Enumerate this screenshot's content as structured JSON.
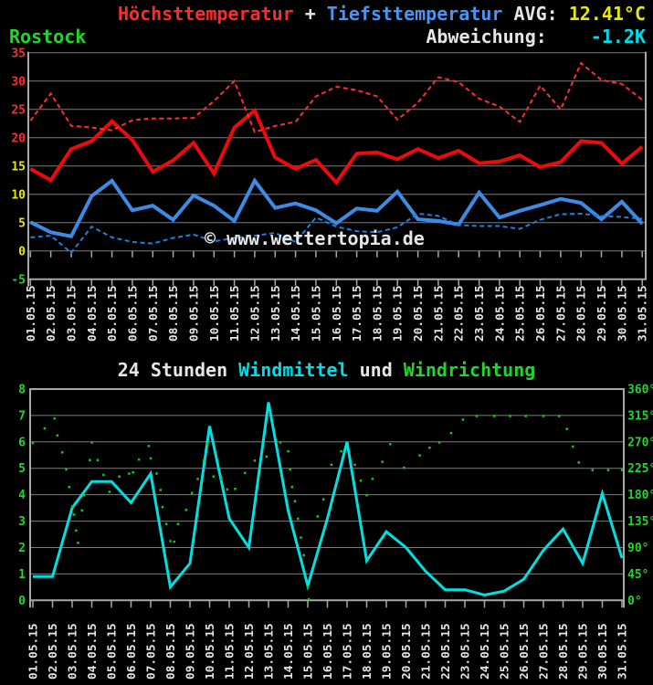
{
  "header": {
    "series1_label": "Höchsttemperatur",
    "separator": " + ",
    "series2_label": "Tiefsttemperatur",
    "avg_label": " AVG: ",
    "avg_value": "12.41°C",
    "station": "Rostock",
    "deviation_label": "Abweichung:",
    "deviation_value": "-1.2K"
  },
  "watermark": "© www.wettertopia.de",
  "wind_title": {
    "prefix": "24 Stunden ",
    "windmittel": "Windmittel",
    "und": " und ",
    "windrichtung": "Windrichtung"
  },
  "colors": {
    "background": "#000000",
    "text_white": "#e6e6e6",
    "red": "#ff2a2a",
    "blue": "#4596f5",
    "yellow": "#e9e900",
    "cyan": "#00dce8",
    "green": "#22d52a",
    "grid": "#7d7d7d",
    "axis": "#a8a8a8",
    "tmax_solid": "#ee0a0a",
    "tmax_dashed": "#ff2d2d",
    "tmin_solid": "#3c8ce6",
    "tmin_dashed": "#1f7fe0",
    "wind_line": "#00e0e0",
    "wind_dots": "#16c816"
  },
  "chart_data": [
    {
      "type": "line",
      "title": "Höchsttemperatur + Tiefsttemperatur",
      "station": "Rostock",
      "avg": "12.41°C",
      "abweichung": "-1.2K",
      "ylim": [
        -5,
        35
      ],
      "ytick_step": 5,
      "grid": true,
      "yticks": [
        {
          "value": 35,
          "color": "#ff2a2a"
        },
        {
          "value": 30,
          "color": "#ff2a2a"
        },
        {
          "value": 25,
          "color": "#ff2a2a"
        },
        {
          "value": 20,
          "color": "#ff2a2a"
        },
        {
          "value": 15,
          "color": "#e9e900"
        },
        {
          "value": 10,
          "color": "#e9e900"
        },
        {
          "value": 5,
          "color": "#e9e900"
        },
        {
          "value": 0,
          "color": "#e9e900"
        },
        {
          "value": -5,
          "color": "#22d52a"
        }
      ],
      "x_labels": [
        "01.05.15",
        "02.05.15",
        "03.05.15",
        "04.05.15",
        "05.05.15",
        "06.05.15",
        "07.05.15",
        "08.05.15",
        "09.05.15",
        "10.05.15",
        "11.05.15",
        "12.05.15",
        "13.05.15",
        "14.05.15",
        "15.05.15",
        "16.05.15",
        "17.05.15",
        "18.05.15",
        "19.05.15",
        "20.05.15",
        "21.05.15",
        "22.05.15",
        "23.05.15",
        "24.05.15",
        "25.05.15",
        "26.05.15",
        "27.05.15",
        "28.05.15",
        "29.05.15",
        "30.05.15",
        "31.05.15"
      ],
      "series": [
        {
          "id": "tmax",
          "name": "Höchsttemperatur",
          "line": "solid",
          "width": 4,
          "color": "#ee0a0a",
          "values": [
            14.5,
            12.5,
            18.0,
            19.4,
            22.9,
            19.6,
            14.0,
            16.0,
            19.1,
            13.7,
            21.8,
            24.8,
            16.5,
            14.5,
            16.1,
            12.1,
            17.2,
            17.4,
            16.2,
            18.0,
            16.4,
            17.7,
            15.5,
            15.8,
            16.9,
            14.8,
            15.7,
            19.4,
            19.1,
            15.4,
            18.4
          ]
        },
        {
          "id": "tmax-dashed",
          "name": "Höchsttemperatur gestrichelt",
          "line": "dashed",
          "width": 2,
          "color": "#ff2d2d",
          "values": [
            23.0,
            27.8,
            22.1,
            21.8,
            21.3,
            23.1,
            23.4,
            23.4,
            23.5,
            26.5,
            30.0,
            21.0,
            22.1,
            22.8,
            27.3,
            29.0,
            28.4,
            27.3,
            23.2,
            26.2,
            30.7,
            29.8,
            26.9,
            25.5,
            22.8,
            29.2,
            25.0,
            33.2,
            30.2,
            29.5,
            26.7
          ]
        },
        {
          "id": "tmin",
          "name": "Tiefsttemperatur",
          "line": "solid",
          "width": 4,
          "color": "#3c8ce6",
          "values": [
            5.1,
            3.3,
            2.6,
            9.7,
            12.4,
            7.2,
            8.0,
            5.5,
            9.8,
            8.0,
            5.3,
            12.4,
            7.6,
            8.4,
            7.2,
            4.9,
            7.5,
            7.1,
            10.5,
            5.6,
            5.3,
            4.7,
            10.3,
            5.9,
            7.1,
            8.1,
            9.2,
            8.5,
            5.6,
            8.7,
            4.8
          ]
        },
        {
          "id": "tmin-dashed",
          "name": "Tiefsttemperatur gestrichelt",
          "line": "dashed",
          "width": 2,
          "color": "#1f7fe0",
          "values": [
            2.4,
            2.7,
            -0.3,
            4.3,
            2.4,
            1.6,
            1.3,
            2.3,
            2.9,
            1.7,
            2.3,
            2.7,
            3.2,
            1.6,
            5.9,
            4.3,
            3.5,
            3.3,
            4.2,
            6.6,
            6.2,
            4.6,
            4.4,
            4.4,
            3.9,
            5.5,
            6.5,
            6.6,
            6.2,
            6.0,
            5.7
          ]
        }
      ]
    },
    {
      "type": "line+scatter",
      "title": "24 Stunden Windmittel und Windrichtung",
      "grid": true,
      "left_ylim": [
        0,
        8
      ],
      "left_yticks": [
        8,
        7,
        6,
        5,
        4,
        3,
        2,
        1,
        0
      ],
      "right_ylim_deg": [
        0,
        360
      ],
      "right_yticks_deg": [
        360,
        315,
        270,
        225,
        180,
        135,
        90,
        45,
        0
      ],
      "right_tick_suffix": "°",
      "x_labels": [
        "01.05.15",
        "02.05.15",
        "03.05.15",
        "04.05.15",
        "05.05.15",
        "06.05.15",
        "07.05.15",
        "08.05.15",
        "09.05.15",
        "10.05.15",
        "11.05.15",
        "12.05.15",
        "13.05.15",
        "14.05.15",
        "15.05.15",
        "16.05.15",
        "17.05.15",
        "18.05.15",
        "19.05.15",
        "20.05.15",
        "21.05.15",
        "22.05.15",
        "23.05.15",
        "24.05.15",
        "25.05.15",
        "26.05.15",
        "27.05.15",
        "28.05.15",
        "29.05.15",
        "30.05.15",
        "31.05.15"
      ],
      "series": [
        {
          "id": "windmittel",
          "name": "Windmittel",
          "line": "solid",
          "width": 3,
          "color": "#00e0e0",
          "values": [
            0.9,
            0.9,
            3.5,
            4.5,
            4.5,
            3.7,
            4.8,
            0.5,
            1.4,
            6.6,
            3.1,
            2.0,
            7.5,
            3.4,
            0.55,
            3.1,
            6.0,
            1.5,
            2.6,
            2.0,
            1.1,
            0.4,
            0.4,
            0.2,
            0.35,
            0.8,
            1.9,
            2.7,
            1.4,
            4.05,
            1.6
          ]
        }
      ],
      "scatter": {
        "id": "windrichtung",
        "name": "Windrichtung",
        "color": "#16c816",
        "points_day_deg": [
          [
            1.0,
            268
          ],
          [
            1.6,
            293
          ],
          [
            2.1,
            310
          ],
          [
            2.25,
            281
          ],
          [
            2.5,
            252
          ],
          [
            2.7,
            223
          ],
          [
            2.85,
            193
          ],
          [
            3.0,
            160
          ],
          [
            3.1,
            146
          ],
          [
            3.2,
            119
          ],
          [
            3.3,
            98
          ],
          [
            3.5,
            153
          ],
          [
            3.6,
            179
          ],
          [
            3.9,
            239
          ],
          [
            4.0,
            269
          ],
          [
            4.3,
            239
          ],
          [
            4.6,
            214
          ],
          [
            4.9,
            185
          ],
          [
            5.4,
            211
          ],
          [
            5.9,
            216
          ],
          [
            6.1,
            218
          ],
          [
            6.4,
            240
          ],
          [
            6.9,
            263
          ],
          [
            7.0,
            242
          ],
          [
            7.3,
            216
          ],
          [
            7.5,
            188
          ],
          [
            7.6,
            159
          ],
          [
            7.8,
            130
          ],
          [
            8.0,
            101
          ],
          [
            8.2,
            100
          ],
          [
            8.4,
            130
          ],
          [
            8.8,
            154
          ],
          [
            9.1,
            183
          ],
          [
            9.4,
            207
          ],
          [
            9.7,
            238
          ],
          [
            9.9,
            266
          ],
          [
            10.2,
            211
          ],
          [
            10.6,
            207
          ],
          [
            10.9,
            189
          ],
          [
            11.3,
            190
          ],
          [
            11.8,
            217
          ],
          [
            12.3,
            238
          ],
          [
            12.9,
            245
          ],
          [
            13.6,
            269
          ],
          [
            14.0,
            254
          ],
          [
            14.1,
            223
          ],
          [
            14.2,
            193
          ],
          [
            14.35,
            169
          ],
          [
            14.5,
            139
          ],
          [
            14.65,
            107
          ],
          [
            14.8,
            77
          ],
          [
            15.0,
            22
          ],
          [
            15.05,
            2
          ],
          [
            15.5,
            143
          ],
          [
            15.8,
            172
          ],
          [
            16.2,
            231
          ],
          [
            16.7,
            254
          ],
          [
            17.4,
            231
          ],
          [
            17.7,
            204
          ],
          [
            18.0,
            179
          ],
          [
            18.3,
            207
          ],
          [
            18.8,
            236
          ],
          [
            19.2,
            266
          ],
          [
            19.9,
            226
          ],
          [
            20.7,
            247
          ],
          [
            21.2,
            260
          ],
          [
            21.7,
            269
          ],
          [
            22.3,
            285
          ],
          [
            22.9,
            308
          ],
          [
            23.6,
            314
          ],
          [
            24.5,
            314
          ],
          [
            25.3,
            314
          ],
          [
            26.1,
            314
          ],
          [
            27.0,
            314
          ],
          [
            27.8,
            314
          ],
          [
            28.2,
            292
          ],
          [
            28.5,
            262
          ],
          [
            28.8,
            235
          ],
          [
            29.5,
            222
          ],
          [
            30.3,
            222
          ],
          [
            31.0,
            222
          ]
        ]
      }
    }
  ]
}
